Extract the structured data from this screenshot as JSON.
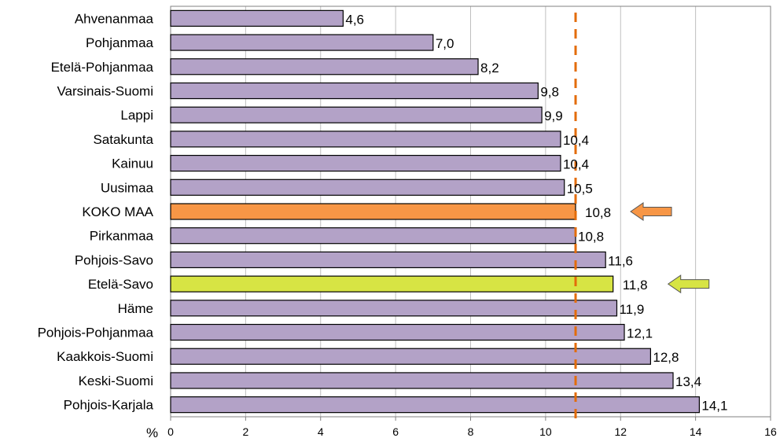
{
  "chart_data": {
    "type": "bar",
    "orientation": "horizontal",
    "categories": [
      "Ahvenanmaa",
      "Pohjanmaa",
      "Etelä-Pohjanmaa",
      "Varsinais-Suomi",
      "Lappi",
      "Satakunta",
      "Kainuu",
      "Uusimaa",
      "KOKO MAA",
      "Pirkanmaa",
      "Pohjois-Savo",
      "Etelä-Savo",
      "Häme",
      "Pohjois-Pohjanmaa",
      "Kaakkois-Suomi",
      "Keski-Suomi",
      "Pohjois-Karjala"
    ],
    "values": [
      4.6,
      7.0,
      8.2,
      9.8,
      9.9,
      10.4,
      10.4,
      10.5,
      10.8,
      10.8,
      11.6,
      11.8,
      11.9,
      12.1,
      12.8,
      13.4,
      14.1
    ],
    "value_labels": [
      "4,6",
      "7,0",
      "8,2",
      "9,8",
      "9,9",
      "10,4",
      "10,4",
      "10,5",
      "10,8",
      "10,8",
      "11,6",
      "11,8",
      "11,9",
      "12,1",
      "12,8",
      "13,4",
      "14,1"
    ],
    "xlim": [
      0,
      16
    ],
    "xticks": [
      0,
      2,
      4,
      6,
      8,
      10,
      12,
      14,
      16
    ],
    "x_unit_label": "%",
    "grid": "vertical",
    "reference_line": {
      "value": 10.8,
      "style": "dashed",
      "color": "#E36C0A"
    },
    "colors": {
      "default": "#B3A2C7",
      "highlight_total": "#F79646",
      "highlight_region": "#D7E444",
      "bar_border": "#000000",
      "grid": "#BFBFBF"
    },
    "highlights": [
      {
        "category": "KOKO MAA",
        "color": "#F79646",
        "arrow_color": "#F79646"
      },
      {
        "category": "Etelä-Savo",
        "color": "#D7E444",
        "arrow_color": "#D7E444"
      }
    ]
  }
}
